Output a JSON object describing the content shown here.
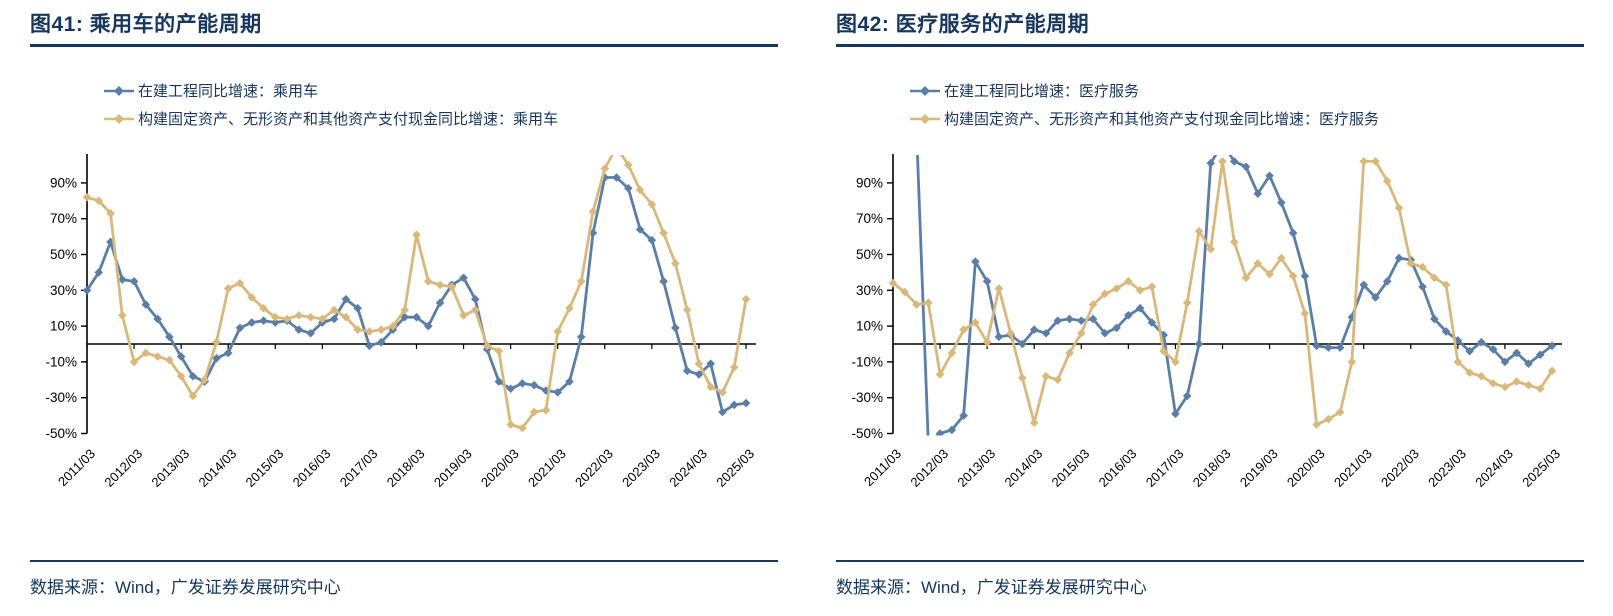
{
  "source_note": "数据来源：Wind，广发证券发展研究中心",
  "colors": {
    "series_blue": "#5B7EA6",
    "series_tan": "#D9B87C",
    "title_navy": "#17365D",
    "axis_black": "#000000"
  },
  "chart_data": [
    {
      "type": "line",
      "title": "图41: 乘用车的产能周期",
      "x_start": "2011/03",
      "x_interval": "quarterly",
      "x_tick_labels": [
        "2011/03",
        "2012/03",
        "2013/03",
        "2014/03",
        "2015/03",
        "2016/03",
        "2017/03",
        "2018/03",
        "2019/03",
        "2020/03",
        "2021/03",
        "2022/03",
        "2023/03",
        "2024/03",
        "2025/03"
      ],
      "y_tick_labels": [
        "90%",
        "70%",
        "50%",
        "30%",
        "10%",
        "-10%",
        "-30%",
        "-50%"
      ],
      "ylim": [
        -50,
        105
      ],
      "gridlines": false,
      "legend_position": "top-left",
      "series": [
        {
          "name": "在建工程同比增速：乘用车",
          "color": "#5B7EA6",
          "values": [
            30,
            40,
            57,
            36,
            35,
            22,
            14,
            4,
            -7,
            -18,
            -21,
            -8,
            -5,
            9,
            12,
            13,
            12,
            13,
            8,
            6,
            12,
            14,
            25,
            20,
            -1,
            1,
            8,
            15,
            15,
            10,
            23,
            33,
            37,
            25,
            -3,
            -21,
            -25,
            -22,
            -23,
            -26,
            -27,
            -21,
            4,
            62,
            93,
            93,
            87,
            64,
            58,
            35,
            9,
            -15,
            -17,
            -11,
            -38,
            -34,
            -33
          ]
        },
        {
          "name": "构建固定资产、无形资产和其他资产支付现金同比增速：乘用车",
          "color": "#D9B87C",
          "values": [
            82,
            80,
            73,
            16,
            -10,
            -5,
            -7,
            -9,
            -18,
            -29,
            -20,
            1,
            31,
            34,
            26,
            20,
            15,
            14,
            16,
            15,
            14,
            19,
            15,
            8,
            7,
            8,
            10,
            19,
            61,
            35,
            33,
            32,
            16,
            19,
            -1,
            -4,
            -45,
            -47,
            -38,
            -37,
            7,
            20,
            35,
            74,
            98,
            110,
            100,
            86,
            78,
            62,
            45,
            19,
            -11,
            -24,
            -27,
            -13,
            25
          ]
        }
      ]
    },
    {
      "type": "line",
      "title": "图42: 医疗服务的产能周期",
      "x_start": "2011/03",
      "x_interval": "quarterly",
      "x_tick_labels": [
        "2011/03",
        "2012/03",
        "2013/03",
        "2014/03",
        "2015/03",
        "2016/03",
        "2017/03",
        "2018/03",
        "2019/03",
        "2020/03",
        "2021/03",
        "2022/03",
        "2023/03",
        "2024/03",
        "2025/03"
      ],
      "y_tick_labels": [
        "90%",
        "70%",
        "50%",
        "30%",
        "10%",
        "-10%",
        "-30%",
        "-50%"
      ],
      "ylim": [
        -50,
        105
      ],
      "gridlines": false,
      "legend_position": "top-left",
      "series": [
        {
          "name": "在建工程同比增速：医疗服务",
          "color": "#5B7EA6",
          "values": [
            null,
            null,
            120,
            -55,
            -50,
            -48,
            -40,
            46,
            35,
            4,
            5,
            0,
            8,
            6,
            13,
            14,
            13,
            14,
            6,
            9,
            16,
            20,
            12,
            5,
            -39,
            -29,
            0,
            101,
            112,
            102,
            99,
            84,
            94,
            79,
            62,
            38,
            -1,
            -2,
            -2,
            15,
            33,
            26,
            35,
            48,
            47,
            32,
            14,
            7,
            2,
            -4,
            1,
            -3,
            -10,
            -5,
            -11,
            -6,
            -1
          ]
        },
        {
          "name": "构建固定资产、无形资产和其他资产支付现金同比增速：医疗服务",
          "color": "#D9B87C",
          "values": [
            34,
            29,
            22,
            23,
            -17,
            -5,
            8,
            12,
            1,
            31,
            6,
            -19,
            -44,
            -18,
            -20,
            -5,
            6,
            22,
            28,
            31,
            35,
            30,
            32,
            -4,
            -10,
            23,
            63,
            53,
            102,
            57,
            37,
            45,
            39,
            48,
            38,
            17,
            -45,
            -42,
            -38,
            -10,
            102,
            102,
            91,
            76,
            45,
            43,
            37,
            33,
            -10,
            -16,
            -18,
            -22,
            -24,
            -21,
            -23,
            -25,
            -15
          ]
        }
      ]
    }
  ]
}
